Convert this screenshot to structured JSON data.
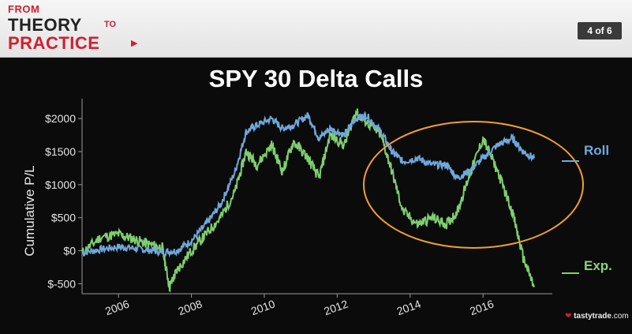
{
  "header": {
    "brand_from": "FROM",
    "brand_theory": "THEORY",
    "brand_to": "TO",
    "brand_practice": "PRACTICE",
    "page_indicator": "4 of 6"
  },
  "watermark": {
    "name": "tastytrade",
    "suffix": ".com"
  },
  "colors": {
    "roll": "#6fa8dc",
    "exp": "#7fcf6f",
    "ellipse": "#f0a030",
    "brand_red": "#cf2030",
    "background": "#0b0b0b"
  },
  "chart_data": {
    "type": "line",
    "title": "SPY 30 Delta Calls",
    "xlabel": "",
    "ylabel": "Cumulative P/L",
    "xlim": [
      2005.0,
      2017.9
    ],
    "ylim": [
      -650,
      2300
    ],
    "x_ticks": [
      2006,
      2008,
      2010,
      2012,
      2014,
      2016
    ],
    "y_ticks": [
      {
        "value": 2000,
        "label": "$2000"
      },
      {
        "value": 1500,
        "label": "$1500"
      },
      {
        "value": 1000,
        "label": "$1000"
      },
      {
        "value": 500,
        "label": "$500"
      },
      {
        "value": 0,
        "label": "$0"
      },
      {
        "value": -500,
        "label": "$-500"
      }
    ],
    "grid": false,
    "legend": "right",
    "annotation": "orange ellipse around 2013-2017 region",
    "series": [
      {
        "name": "Roll",
        "x": [
          2005.0,
          2005.5,
          2006.0,
          2006.4,
          2006.8,
          2007.2,
          2007.6,
          2008.0,
          2008.4,
          2008.8,
          2009.2,
          2009.5,
          2009.8,
          2010.2,
          2010.5,
          2010.8,
          2011.2,
          2011.5,
          2011.8,
          2012.2,
          2012.5,
          2012.8,
          2013.2,
          2013.5,
          2013.8,
          2014.2,
          2014.6,
          2015.0,
          2015.3,
          2015.6,
          2016.0,
          2016.4,
          2016.8,
          2017.1,
          2017.4
        ],
        "values": [
          -30,
          20,
          60,
          40,
          10,
          -20,
          0,
          150,
          400,
          700,
          1200,
          1800,
          1900,
          2000,
          1850,
          1900,
          2050,
          1700,
          1850,
          1750,
          2000,
          2050,
          1800,
          1500,
          1350,
          1400,
          1300,
          1300,
          1100,
          1200,
          1400,
          1600,
          1700,
          1500,
          1400
        ]
      },
      {
        "name": "Exp.",
        "x": [
          2005.0,
          2005.5,
          2006.0,
          2006.4,
          2006.8,
          2007.2,
          2007.4,
          2007.6,
          2008.0,
          2008.4,
          2008.8,
          2009.2,
          2009.5,
          2009.8,
          2010.2,
          2010.5,
          2010.8,
          2011.2,
          2011.5,
          2011.8,
          2012.2,
          2012.5,
          2012.8,
          2013.2,
          2013.5,
          2013.8,
          2014.2,
          2014.6,
          2015.0,
          2015.3,
          2015.6,
          2016.0,
          2016.4,
          2016.8,
          2017.1,
          2017.4
        ],
        "values": [
          -30,
          200,
          250,
          180,
          100,
          50,
          -550,
          -300,
          0,
          250,
          500,
          900,
          1500,
          1300,
          1600,
          1200,
          1650,
          1400,
          1100,
          1750,
          1600,
          2100,
          1950,
          1750,
          1200,
          600,
          400,
          500,
          400,
          600,
          1100,
          1700,
          1200,
          600,
          -100,
          -550
        ]
      }
    ]
  }
}
